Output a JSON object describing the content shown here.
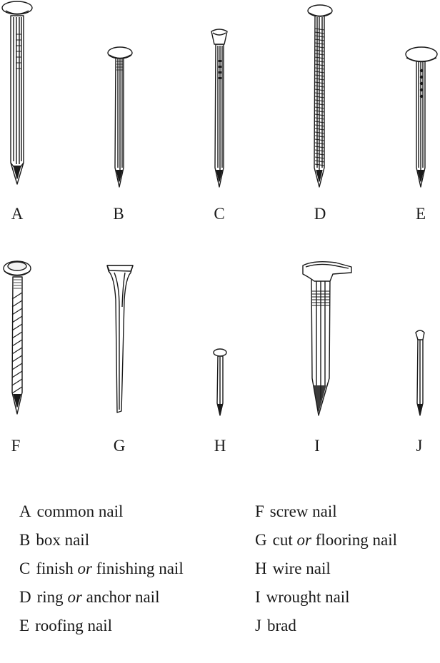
{
  "nails": [
    {
      "letter": "A",
      "name": "common nail",
      "parts": [
        "common nail"
      ]
    },
    {
      "letter": "B",
      "name": "box nail",
      "parts": [
        "box nail"
      ]
    },
    {
      "letter": "C",
      "name": "finish or finishing nail",
      "parts": [
        "finish ",
        "or",
        " finishing nail"
      ]
    },
    {
      "letter": "D",
      "name": "ring or anchor nail",
      "parts": [
        "ring ",
        "or",
        " anchor nail"
      ]
    },
    {
      "letter": "E",
      "name": "roofing nail",
      "parts": [
        "roofing nail"
      ]
    },
    {
      "letter": "F",
      "name": "screw nail",
      "parts": [
        "screw nail"
      ]
    },
    {
      "letter": "G",
      "name": "cut or flooring nail",
      "parts": [
        "cut ",
        "or",
        " flooring nail"
      ]
    },
    {
      "letter": "H",
      "name": "wire nail",
      "parts": [
        "wire nail"
      ]
    },
    {
      "letter": "I",
      "name": "wrought nail",
      "parts": [
        "wrought nail"
      ]
    },
    {
      "letter": "J",
      "name": "brad",
      "parts": [
        "brad"
      ]
    }
  ]
}
